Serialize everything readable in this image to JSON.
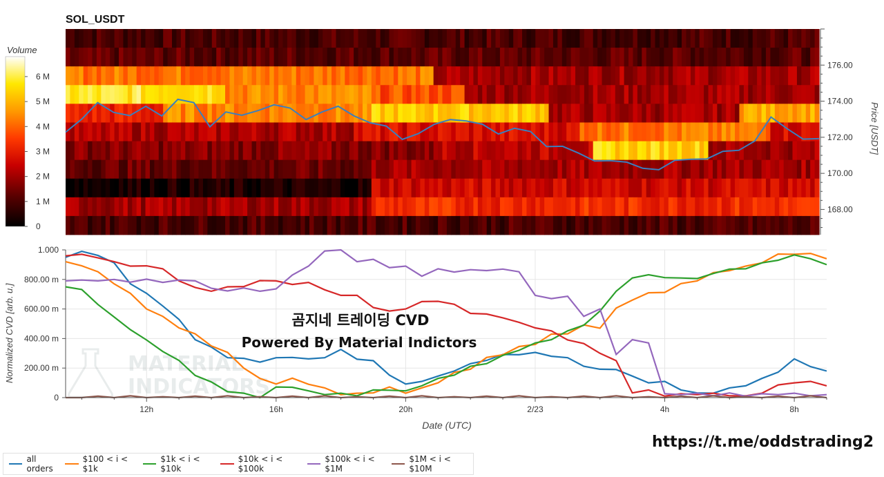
{
  "title": "SOL_USDT",
  "colorbar": {
    "label": "Volume",
    "ticks": [
      "0",
      "1 M",
      "2 M",
      "3 M",
      "4 M",
      "5 M",
      "6 M"
    ],
    "max": 6800000
  },
  "price_axis": {
    "label": "Price [USDT]",
    "ticks": [
      "168.00",
      "170.00",
      "172.00",
      "174.00",
      "176.00"
    ],
    "range": [
      166.6,
      178.0
    ]
  },
  "cvd_axis": {
    "label": "Normalized CVD [arb. u.]",
    "ticks": [
      "0",
      "200.00 m",
      "400.00 m",
      "600.00 m",
      "800.00 m",
      "1.000"
    ]
  },
  "x_axis": {
    "label": "Date (UTC)",
    "ticks": [
      "12h",
      "16h",
      "20h",
      "2/23",
      "4h",
      "8h"
    ]
  },
  "watermark": {
    "line1": "곰지네 트레이딩 CVD",
    "line2": "Powered By Material Indictors",
    "logo_line1": "MATERIAL",
    "logo_line2": "INDICATORS"
  },
  "link": "https://t.me/oddstrading2",
  "legend": [
    {
      "label": "all orders",
      "color": "#1f77b4"
    },
    {
      "label": "$100 < i < $1k",
      "color": "#ff7f0e"
    },
    {
      "label": "$1k < i < $10k",
      "color": "#2ca02c"
    },
    {
      "label": "$10k < i < $100k",
      "color": "#d62728"
    },
    {
      "label": "$100k < i < $1M",
      "color": "#9467bd"
    },
    {
      "label": "$1M < i < $10M",
      "color": "#8c564b"
    }
  ],
  "chart_data": [
    {
      "type": "heatmap",
      "title": "SOL_USDT",
      "xlabel": "Date (UTC)",
      "ylabel": "Price [USDT]",
      "x_range_hours": [
        9.5,
        33.0
      ],
      "price_bands": [
        176.5,
        175.5,
        174.5,
        173.5,
        172.5,
        171.5,
        170.5,
        169.5,
        168.5,
        167.5,
        166.9
      ],
      "band_profiles": [
        {
          "segments": [
            [
              9.5,
              33.0,
              0.15
            ]
          ]
        },
        {
          "segments": [
            [
              9.5,
              33.0,
              0.18
            ]
          ]
        },
        {
          "segments": [
            [
              9.5,
              21.0,
              0.62
            ],
            [
              21.0,
              33.0,
              0.3
            ]
          ]
        },
        {
          "segments": [
            [
              9.5,
              14.5,
              0.85
            ],
            [
              14.5,
              19.0,
              0.65
            ],
            [
              19.0,
              22.0,
              0.55
            ],
            [
              22.0,
              33.0,
              0.3
            ]
          ]
        },
        {
          "segments": [
            [
              9.5,
              12.5,
              0.45
            ],
            [
              12.5,
              19.0,
              0.65
            ],
            [
              19.0,
              24.5,
              0.78
            ],
            [
              24.5,
              30.5,
              0.3
            ],
            [
              30.5,
              33.0,
              0.72
            ]
          ]
        },
        {
          "segments": [
            [
              9.5,
              18.5,
              0.32
            ],
            [
              18.5,
              25.5,
              0.4
            ],
            [
              25.5,
              31.5,
              0.62
            ],
            [
              31.5,
              33.0,
              0.4
            ]
          ]
        },
        {
          "segments": [
            [
              9.5,
              21.0,
              0.25
            ],
            [
              21.0,
              26.0,
              0.35
            ],
            [
              26.0,
              29.5,
              0.8
            ],
            [
              29.5,
              33.0,
              0.3
            ]
          ]
        },
        {
          "segments": [
            [
              9.5,
              19.0,
              0.2
            ],
            [
              19.0,
              33.0,
              0.3
            ]
          ]
        },
        {
          "segments": [
            [
              9.5,
              19.0,
              0.05
            ],
            [
              19.0,
              33.0,
              0.38
            ]
          ]
        },
        {
          "segments": [
            [
              9.5,
              19.0,
              0.3
            ],
            [
              19.0,
              33.0,
              0.48
            ]
          ]
        },
        {
          "segments": [
            [
              9.5,
              33.0,
              0.15
            ]
          ]
        }
      ],
      "price_line": {
        "x": [
          9.5,
          10.0,
          10.5,
          11.0,
          11.5,
          12.0,
          12.5,
          13.0,
          13.5,
          14.0,
          14.5,
          15.0,
          15.5,
          16.0,
          16.5,
          17.0,
          17.5,
          18.0,
          18.5,
          19.0,
          19.5,
          20.0,
          20.5,
          21.0,
          21.5,
          22.0,
          22.5,
          23.0,
          23.5,
          24.0,
          24.5,
          25.0,
          25.5,
          26.0,
          26.5,
          27.0,
          27.5,
          28.0,
          28.5,
          29.0,
          29.5,
          30.0,
          30.5,
          31.0,
          31.5,
          32.0,
          32.5,
          33.0
        ],
        "y": [
          172.4,
          173.0,
          173.8,
          173.5,
          173.2,
          173.6,
          173.3,
          174.1,
          173.8,
          172.7,
          173.4,
          173.1,
          173.6,
          173.8,
          173.5,
          173.1,
          173.4,
          173.6,
          173.3,
          172.8,
          172.5,
          172.0,
          172.2,
          172.6,
          173.1,
          172.9,
          172.6,
          172.3,
          172.5,
          172.2,
          171.6,
          171.5,
          171.0,
          170.8,
          170.7,
          170.5,
          170.4,
          170.2,
          170.6,
          170.9,
          170.8,
          171.1,
          171.4,
          171.8,
          173.0,
          172.6,
          171.9,
          171.8
        ]
      },
      "colorbar_range": [
        0,
        6800000
      ]
    },
    {
      "type": "line",
      "xlabel": "Date (UTC)",
      "ylabel": "Normalized CVD [arb. u.]",
      "ylim": [
        0,
        1
      ],
      "x": [
        9.5,
        10.0,
        10.5,
        11.0,
        11.5,
        12.0,
        12.5,
        13.0,
        13.5,
        14.0,
        14.5,
        15.0,
        15.5,
        16.0,
        16.5,
        17.0,
        17.5,
        18.0,
        18.5,
        19.0,
        19.5,
        20.0,
        20.5,
        21.0,
        21.5,
        22.0,
        22.5,
        23.0,
        23.5,
        24.0,
        24.5,
        25.0,
        25.5,
        26.0,
        26.5,
        27.0,
        27.5,
        28.0,
        28.5,
        29.0,
        29.5,
        30.0,
        30.5,
        31.0,
        31.5,
        32.0,
        32.5,
        33.0
      ],
      "series": [
        {
          "name": "all orders",
          "color": "#1f77b4",
          "values": [
            0.95,
            0.98,
            0.97,
            0.9,
            0.78,
            0.7,
            0.62,
            0.52,
            0.4,
            0.33,
            0.28,
            0.26,
            0.24,
            0.26,
            0.28,
            0.25,
            0.28,
            0.32,
            0.26,
            0.24,
            0.16,
            0.08,
            0.12,
            0.14,
            0.18,
            0.22,
            0.26,
            0.28,
            0.3,
            0.3,
            0.28,
            0.26,
            0.22,
            0.18,
            0.2,
            0.14,
            0.1,
            0.1,
            0.06,
            0.02,
            0.04,
            0.06,
            0.08,
            0.12,
            0.18,
            0.25,
            0.22,
            0.18
          ]
        },
        {
          "name": "$100 < i < $1k",
          "color": "#ff7f0e",
          "values": [
            0.92,
            0.9,
            0.84,
            0.78,
            0.7,
            0.6,
            0.54,
            0.48,
            0.42,
            0.36,
            0.3,
            0.2,
            0.12,
            0.1,
            0.12,
            0.1,
            0.06,
            0.02,
            0.02,
            0.04,
            0.06,
            0.04,
            0.06,
            0.1,
            0.16,
            0.2,
            0.26,
            0.3,
            0.34,
            0.36,
            0.42,
            0.44,
            0.48,
            0.48,
            0.6,
            0.66,
            0.7,
            0.72,
            0.76,
            0.8,
            0.84,
            0.86,
            0.88,
            0.92,
            0.96,
            0.98,
            0.97,
            0.94
          ]
        },
        {
          "name": "$1k < i < $10k",
          "color": "#2ca02c",
          "values": [
            0.75,
            0.72,
            0.64,
            0.54,
            0.46,
            0.38,
            0.32,
            0.24,
            0.16,
            0.1,
            0.04,
            0.02,
            0.0,
            0.06,
            0.08,
            0.04,
            0.02,
            0.02,
            0.02,
            0.04,
            0.06,
            0.04,
            0.08,
            0.12,
            0.16,
            0.2,
            0.24,
            0.28,
            0.32,
            0.36,
            0.4,
            0.44,
            0.5,
            0.58,
            0.72,
            0.8,
            0.84,
            0.8,
            0.82,
            0.8,
            0.84,
            0.86,
            0.88,
            0.9,
            0.94,
            0.96,
            0.94,
            0.9
          ]
        },
        {
          "name": "$10k < i < $100k",
          "color": "#d62728",
          "values": [
            0.96,
            0.98,
            0.94,
            0.92,
            0.88,
            0.9,
            0.86,
            0.8,
            0.74,
            0.72,
            0.74,
            0.76,
            0.78,
            0.8,
            0.76,
            0.78,
            0.72,
            0.7,
            0.68,
            0.62,
            0.58,
            0.6,
            0.64,
            0.66,
            0.62,
            0.58,
            0.56,
            0.54,
            0.5,
            0.48,
            0.44,
            0.4,
            0.36,
            0.3,
            0.24,
            0.04,
            0.04,
            0.02,
            0.02,
            0.02,
            0.02,
            0.02,
            0.0,
            0.04,
            0.08,
            0.1,
            0.1,
            0.08
          ]
        },
        {
          "name": "$100k < i < $1M",
          "color": "#9467bd",
          "values": [
            0.79,
            0.79,
            0.79,
            0.79,
            0.79,
            0.79,
            0.79,
            0.79,
            0.79,
            0.73,
            0.73,
            0.73,
            0.73,
            0.73,
            0.83,
            0.88,
            1.0,
            1.0,
            0.93,
            0.93,
            0.88,
            0.88,
            0.83,
            0.86,
            0.86,
            0.86,
            0.86,
            0.86,
            0.86,
            0.68,
            0.68,
            0.68,
            0.55,
            0.59,
            0.3,
            0.38,
            0.38,
            0.02,
            0.02,
            0.02,
            0.02,
            0.02,
            0.02,
            0.02,
            0.02,
            0.02,
            0.02,
            0.02
          ]
        },
        {
          "name": "$1M < i < $10M",
          "color": "#8c564b",
          "values": [
            0,
            0,
            0,
            0,
            0,
            0,
            0,
            0,
            0,
            0,
            0,
            0,
            0,
            0,
            0,
            0,
            0,
            0,
            0,
            0,
            0,
            0,
            0,
            0,
            0,
            0,
            0,
            0,
            0,
            0,
            0,
            0,
            0,
            0,
            0,
            0,
            0,
            0,
            0,
            0,
            0,
            0,
            0,
            0,
            0,
            0,
            0,
            0
          ]
        }
      ]
    }
  ]
}
